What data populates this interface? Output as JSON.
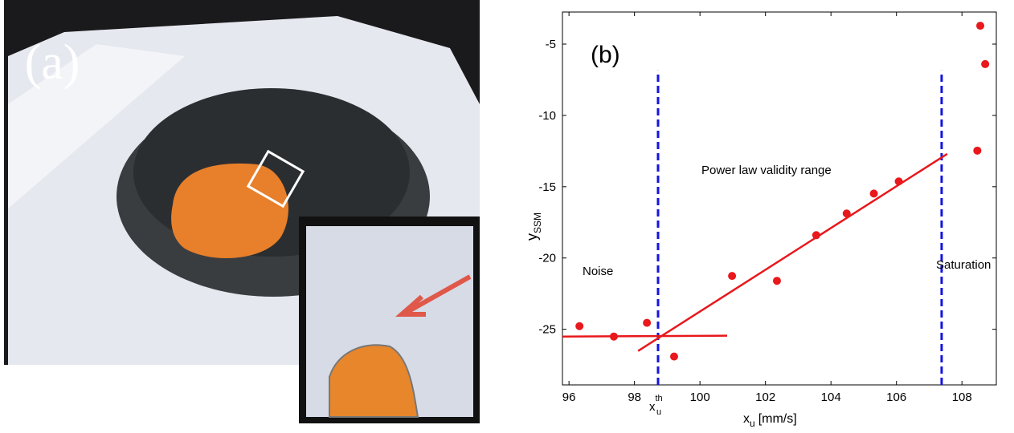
{
  "photo": {
    "label": "(a)"
  },
  "chart_data": {
    "type": "scatter",
    "label": "(b)",
    "xlabel": {
      "text": "x",
      "sub": "u",
      "unit": "[mm/s]"
    },
    "ylabel": {
      "text": "y",
      "sub": "SSM"
    },
    "xlim": [
      95.8,
      109.05
    ],
    "ylim": [
      -28.9,
      -2.75
    ],
    "xticks": [
      96,
      98,
      100,
      102,
      104,
      106,
      108
    ],
    "yticks": [
      -25,
      -20,
      -15,
      -10,
      -5
    ],
    "points": {
      "color": "#e8181c",
      "x": [
        96.32,
        97.37,
        98.38,
        99.21,
        100.98,
        102.35,
        103.55,
        104.48,
        105.31,
        106.07,
        108.47,
        108.56,
        108.71
      ],
      "y": [
        -24.78,
        -25.51,
        -24.55,
        -26.91,
        -21.26,
        -21.6,
        -18.4,
        -16.88,
        -15.48,
        -14.63,
        -12.47,
        -3.71,
        -6.4
      ]
    },
    "fits": [
      {
        "color": "#e8181c",
        "x": [
          95.8,
          100.83
        ],
        "y": [
          -25.51,
          -25.45
        ]
      },
      {
        "color": "#e8181c",
        "x": [
          98.11,
          107.55
        ],
        "y": [
          -26.52,
          -12.7
        ]
      }
    ],
    "vlines": [
      {
        "color": "#1515e0",
        "x": [
          98.72,
          98.72
        ],
        "y": [
          -28.9,
          -6.85
        ]
      },
      {
        "color": "#1515e0",
        "x": [
          107.38,
          107.38
        ],
        "y": [
          -28.9,
          -6.85
        ]
      }
    ],
    "threshold_label": {
      "text": "x",
      "sub": "u",
      "sup": "th"
    },
    "annotations": [
      "Power law validity range",
      "Noise",
      "Saturation"
    ]
  }
}
